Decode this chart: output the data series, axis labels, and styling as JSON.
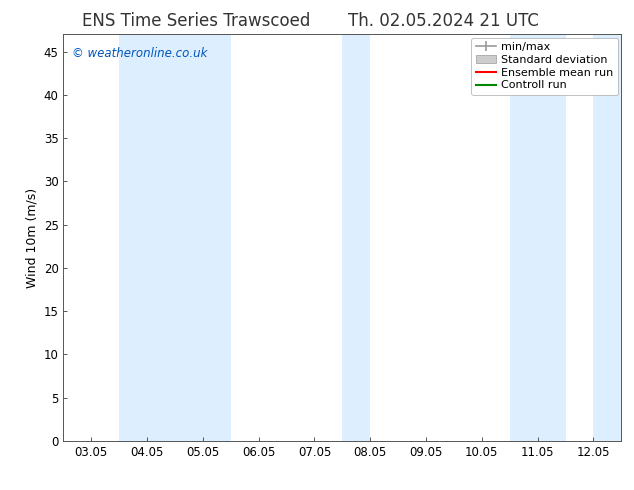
{
  "title_left": "ENS Time Series Trawscoed",
  "title_right": "Th. 02.05.2024 21 UTC",
  "ylabel": "Wind 10m (m/s)",
  "ylim": [
    0,
    47
  ],
  "yticks": [
    0,
    5,
    10,
    15,
    20,
    25,
    30,
    35,
    40,
    45
  ],
  "xlabels": [
    "03.05",
    "04.05",
    "05.05",
    "06.05",
    "07.05",
    "08.05",
    "09.05",
    "10.05",
    "11.05",
    "12.05"
  ],
  "x_num": [
    0,
    1,
    2,
    3,
    4,
    5,
    6,
    7,
    8,
    9
  ],
  "shaded_bands": [
    {
      "xmin": 1.0,
      "xmax": 3.0,
      "color": "#ddeeff"
    },
    {
      "xmin": 5.0,
      "xmax": 5.5,
      "color": "#ddeeff"
    },
    {
      "xmin": 8.0,
      "xmax": 9.0,
      "color": "#ddeeff"
    },
    {
      "xmin": 9.5,
      "xmax": 10.0,
      "color": "#ddeeff"
    }
  ],
  "legend_entries": [
    {
      "label": "min/max",
      "color": "#aaaaaa",
      "style": "minmax"
    },
    {
      "label": "Standard deviation",
      "color": "#cccccc",
      "style": "stdev"
    },
    {
      "label": "Ensemble mean run",
      "color": "#ff0000",
      "style": "line"
    },
    {
      "label": "Controll run",
      "color": "#008000",
      "style": "line"
    }
  ],
  "watermark_text": "© weatheronline.co.uk",
  "watermark_color": "#0055bb",
  "background_color": "#ffffff",
  "plot_bg_color": "#ffffff",
  "border_color": "#555555",
  "title_fontsize": 12,
  "axis_fontsize": 9,
  "tick_fontsize": 8.5,
  "legend_fontsize": 8
}
